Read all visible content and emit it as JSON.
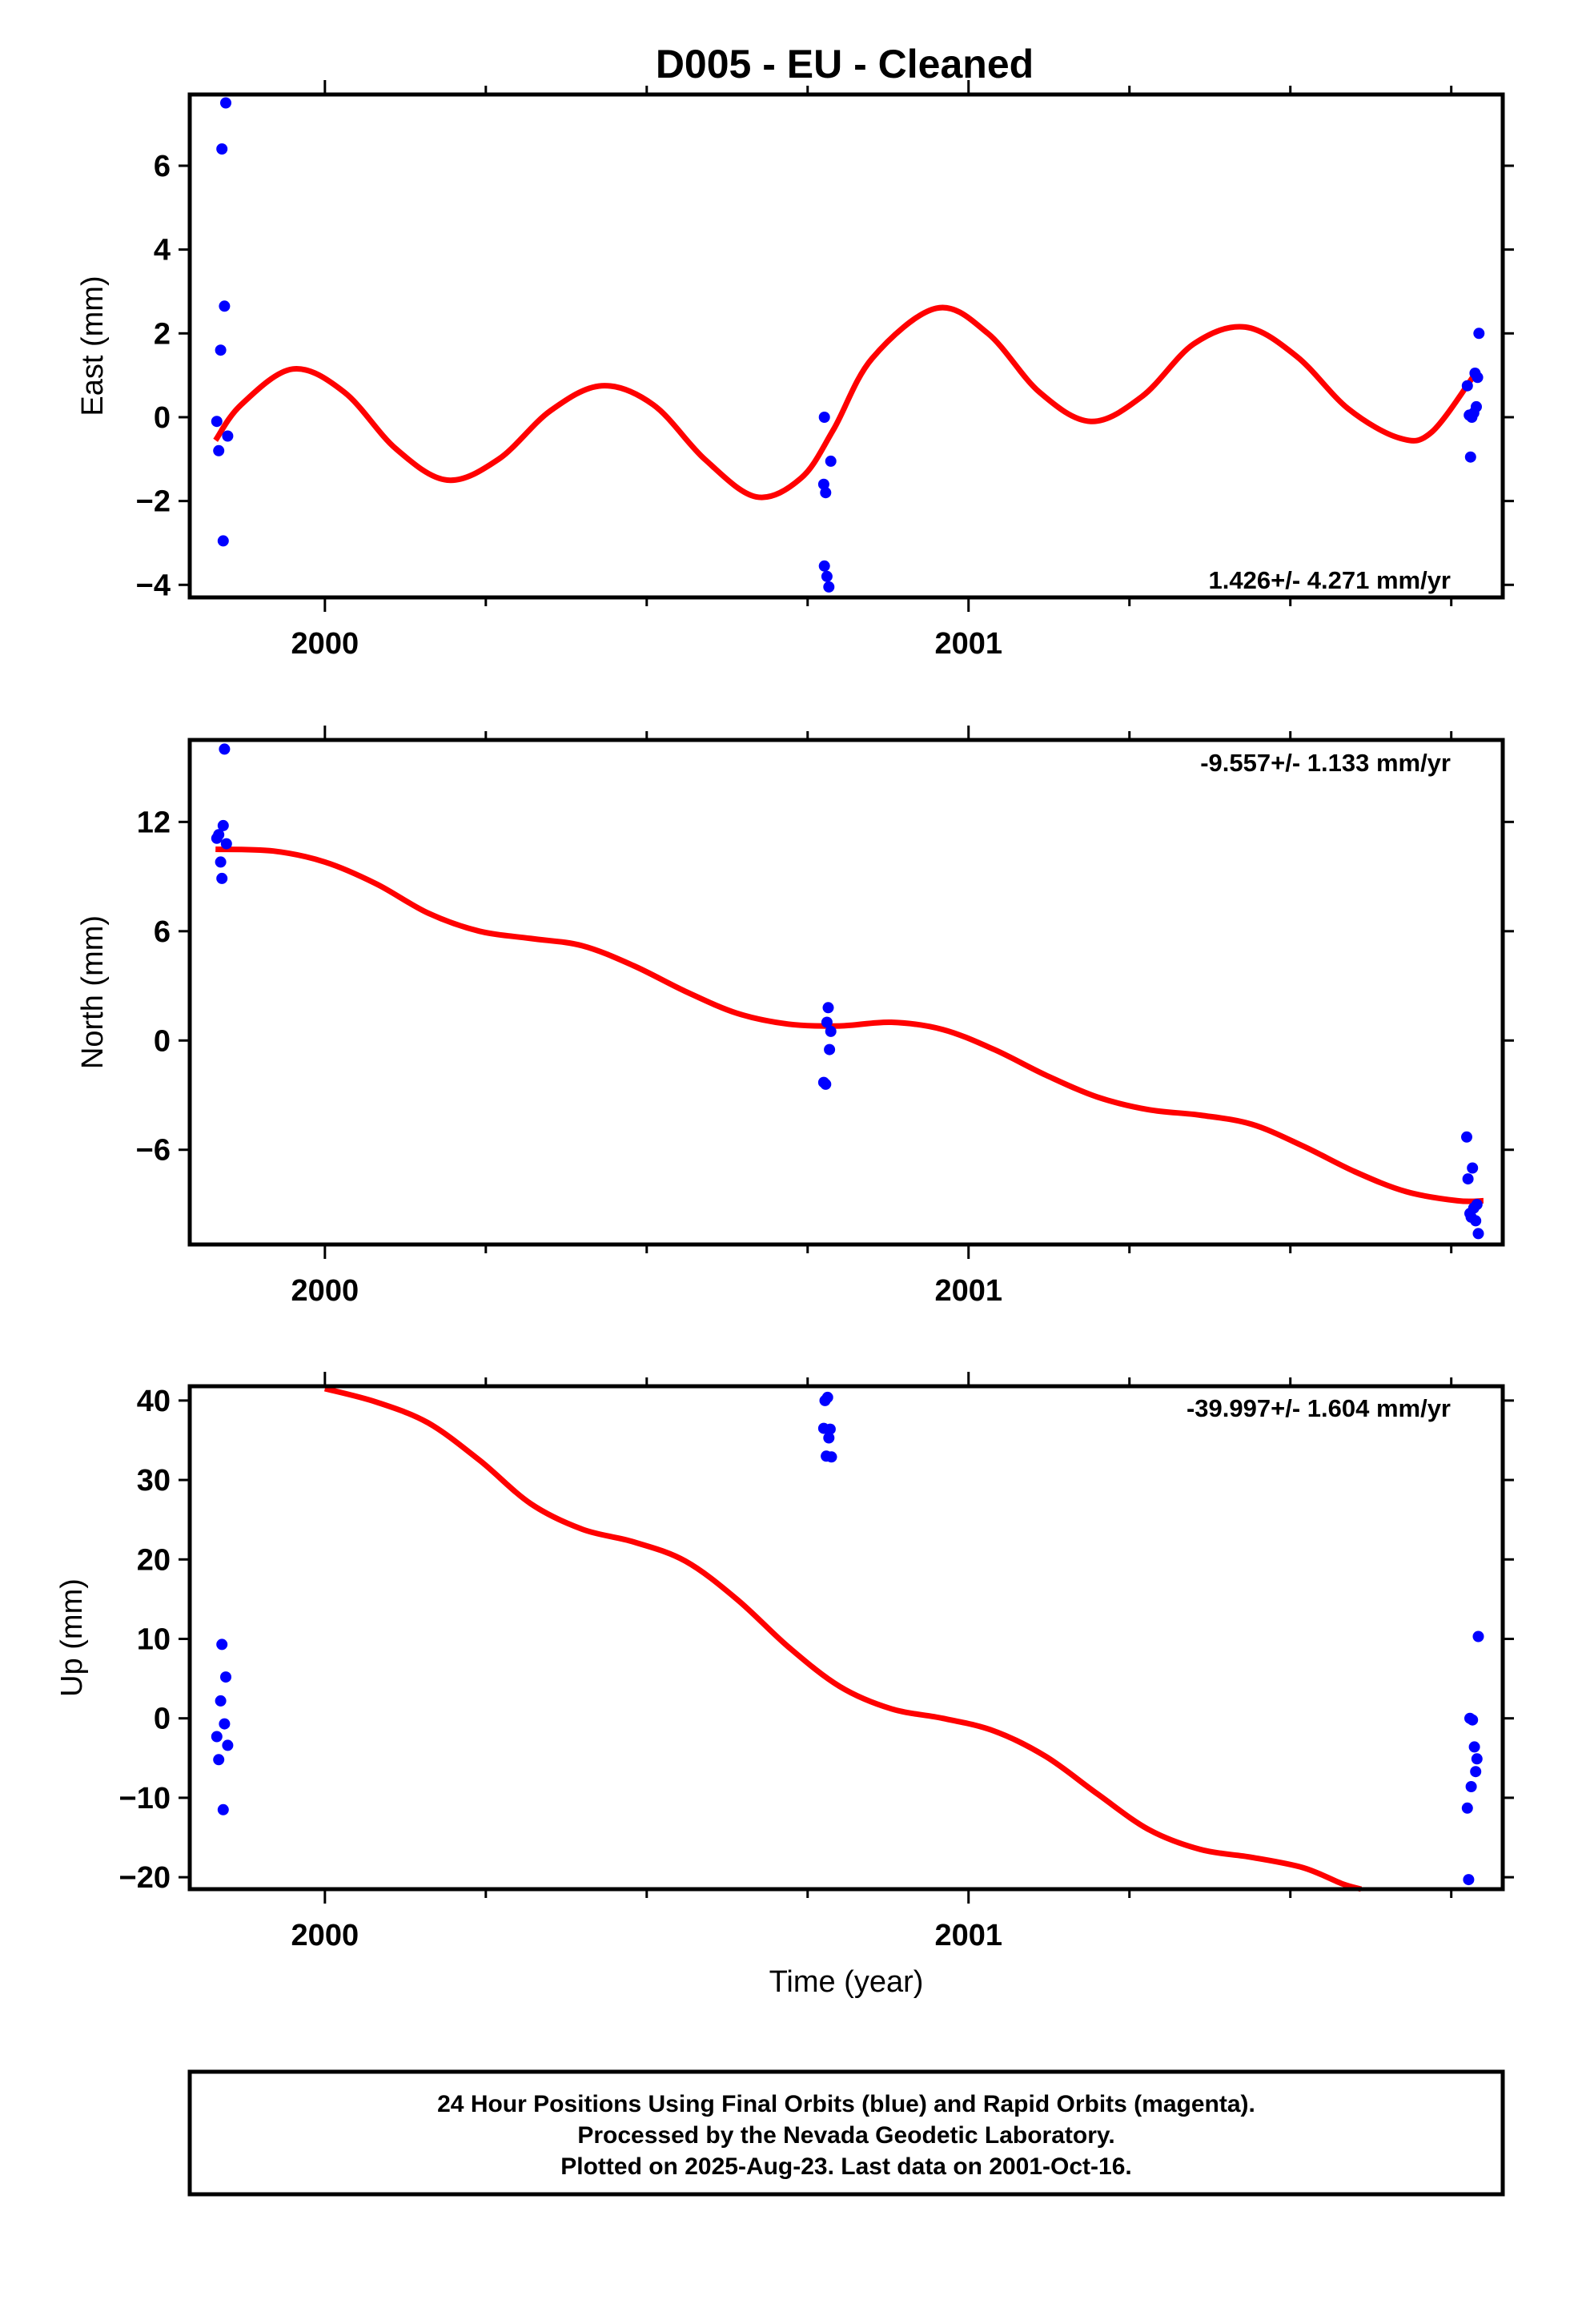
{
  "title": "D005  - EU - Cleaned",
  "chart_data": [
    {
      "type": "scatter",
      "panel": "east",
      "ylabel": "East (mm)",
      "xlabel": "",
      "xlim": [
        1999.79,
        2001.83
      ],
      "ylim": [
        -4.3,
        7.7
      ],
      "yticks": [
        -4,
        -2,
        0,
        2,
        4,
        6
      ],
      "xticks": [
        2000,
        2001
      ],
      "rate_text": "1.426+/- 4.271 mm/yr",
      "rate_position": "bottom-right",
      "series": [
        {
          "color": "#0000ff",
          "points": [
            [
              1999.832,
              -0.1
            ],
            [
              1999.835,
              -0.8
            ],
            [
              1999.838,
              1.6
            ],
            [
              1999.84,
              6.4
            ],
            [
              1999.842,
              -2.95
            ],
            [
              1999.844,
              2.65
            ],
            [
              1999.846,
              7.5
            ],
            [
              1999.849,
              -0.45
            ],
            [
              2000.776,
              0.0
            ],
            [
              2000.775,
              -1.6
            ],
            [
              2000.778,
              -1.8
            ],
            [
              2000.776,
              -3.55
            ],
            [
              2000.78,
              -3.8
            ],
            [
              2000.783,
              -4.05
            ],
            [
              2000.786,
              -1.05
            ],
            [
              2001.775,
              0.75
            ],
            [
              2001.778,
              0.05
            ],
            [
              2001.78,
              -0.95
            ],
            [
              2001.782,
              0.0
            ],
            [
              2001.785,
              0.1
            ],
            [
              2001.787,
              1.05
            ],
            [
              2001.789,
              0.25
            ],
            [
              2001.791,
              0.95
            ],
            [
              2001.793,
              2.0
            ]
          ]
        },
        {
          "color": "#ff0000",
          "line": [
            [
              1999.83,
              -0.55
            ],
            [
              1999.87,
              0.3
            ],
            [
              1999.95,
              1.15
            ],
            [
              2000.03,
              0.6
            ],
            [
              2000.11,
              -0.75
            ],
            [
              2000.19,
              -1.5
            ],
            [
              2000.27,
              -1.0
            ],
            [
              2000.35,
              0.15
            ],
            [
              2000.43,
              0.75
            ],
            [
              2000.51,
              0.3
            ],
            [
              2000.59,
              -1.0
            ],
            [
              2000.67,
              -1.9
            ],
            [
              2000.74,
              -1.45
            ],
            [
              2000.79,
              -0.3
            ],
            [
              2000.85,
              1.4
            ],
            [
              2000.95,
              2.6
            ],
            [
              2001.03,
              2.0
            ],
            [
              2001.11,
              0.6
            ],
            [
              2001.19,
              -0.1
            ],
            [
              2001.27,
              0.5
            ],
            [
              2001.35,
              1.75
            ],
            [
              2001.43,
              2.15
            ],
            [
              2001.51,
              1.45
            ],
            [
              2001.59,
              0.2
            ],
            [
              2001.67,
              -0.5
            ],
            [
              2001.72,
              -0.35
            ],
            [
              2001.79,
              1.1
            ]
          ]
        }
      ]
    },
    {
      "type": "scatter",
      "panel": "north",
      "ylabel": "North (mm)",
      "xlabel": "",
      "xlim": [
        1999.79,
        2001.83
      ],
      "ylim": [
        -11.2,
        16.5
      ],
      "yticks": [
        -6,
        0,
        6,
        12
      ],
      "xticks": [
        2000,
        2001
      ],
      "rate_text": "-9.557+/- 1.133 mm/yr",
      "rate_position": "top-right",
      "series": [
        {
          "color": "#0000ff",
          "points": [
            [
              1999.832,
              11.1
            ],
            [
              1999.835,
              11.3
            ],
            [
              1999.838,
              9.8
            ],
            [
              1999.84,
              8.9
            ],
            [
              1999.842,
              11.8
            ],
            [
              1999.844,
              16.0
            ],
            [
              1999.847,
              10.8
            ],
            [
              2000.775,
              -2.3
            ],
            [
              2000.778,
              -2.4
            ],
            [
              2000.78,
              1.0
            ],
            [
              2000.782,
              1.8
            ],
            [
              2000.784,
              -0.5
            ],
            [
              2000.786,
              0.5
            ],
            [
              2001.774,
              -5.3
            ],
            [
              2001.776,
              -7.6
            ],
            [
              2001.779,
              -9.5
            ],
            [
              2001.781,
              -9.7
            ],
            [
              2001.783,
              -7.0
            ],
            [
              2001.785,
              -9.2
            ],
            [
              2001.788,
              -9.9
            ],
            [
              2001.79,
              -9.0
            ],
            [
              2001.792,
              -10.6
            ]
          ]
        },
        {
          "color": "#ff0000",
          "line": [
            [
              1999.83,
              10.5
            ],
            [
              1999.92,
              10.4
            ],
            [
              2000.0,
              9.8
            ],
            [
              2000.08,
              8.6
            ],
            [
              2000.16,
              7.0
            ],
            [
              2000.24,
              6.0
            ],
            [
              2000.32,
              5.6
            ],
            [
              2000.4,
              5.2
            ],
            [
              2000.48,
              4.1
            ],
            [
              2000.56,
              2.7
            ],
            [
              2000.64,
              1.5
            ],
            [
              2000.72,
              0.9
            ],
            [
              2000.8,
              0.8
            ],
            [
              2000.88,
              1.0
            ],
            [
              2000.96,
              0.6
            ],
            [
              2001.04,
              -0.5
            ],
            [
              2001.12,
              -1.9
            ],
            [
              2001.2,
              -3.1
            ],
            [
              2001.28,
              -3.8
            ],
            [
              2001.36,
              -4.1
            ],
            [
              2001.44,
              -4.6
            ],
            [
              2001.52,
              -5.8
            ],
            [
              2001.6,
              -7.2
            ],
            [
              2001.68,
              -8.3
            ],
            [
              2001.76,
              -8.8
            ],
            [
              2001.8,
              -8.8
            ]
          ]
        }
      ]
    },
    {
      "type": "scatter",
      "panel": "up",
      "ylabel": "Up (mm)",
      "xlabel": "Time (year)",
      "xlim": [
        1999.79,
        2001.83
      ],
      "ylim": [
        -21.5,
        41.8
      ],
      "yticks": [
        -20,
        -10,
        0,
        10,
        20,
        30,
        40
      ],
      "xticks": [
        2000,
        2001
      ],
      "rate_text": "-39.997+/- 1.604 mm/yr",
      "rate_position": "top-right",
      "series": [
        {
          "color": "#0000ff",
          "points": [
            [
              1999.832,
              -2.3
            ],
            [
              1999.835,
              -5.2
            ],
            [
              1999.838,
              2.2
            ],
            [
              1999.84,
              9.3
            ],
            [
              1999.842,
              -11.5
            ],
            [
              1999.844,
              -0.7
            ],
            [
              1999.846,
              5.2
            ],
            [
              1999.849,
              -3.4
            ],
            [
              2000.775,
              36.5
            ],
            [
              2000.777,
              40.0
            ],
            [
              2000.779,
              33.0
            ],
            [
              2000.781,
              40.4
            ],
            [
              2000.783,
              35.3
            ],
            [
              2000.785,
              36.4
            ],
            [
              2000.787,
              32.9
            ],
            [
              2001.775,
              -11.3
            ],
            [
              2001.777,
              -20.3
            ],
            [
              2001.779,
              0.0
            ],
            [
              2001.781,
              -8.6
            ],
            [
              2001.783,
              -0.2
            ],
            [
              2001.786,
              -3.6
            ],
            [
              2001.788,
              -6.7
            ],
            [
              2001.79,
              -5.1
            ],
            [
              2001.792,
              10.3
            ]
          ]
        },
        {
          "color": "#ff0000",
          "line": [
            [
              2000.0,
              41.5
            ],
            [
              2000.08,
              39.8
            ],
            [
              2000.16,
              37.2
            ],
            [
              2000.24,
              32.5
            ],
            [
              2000.32,
              27.0
            ],
            [
              2000.4,
              23.8
            ],
            [
              2000.48,
              22.2
            ],
            [
              2000.56,
              19.8
            ],
            [
              2000.64,
              15.0
            ],
            [
              2000.72,
              9.0
            ],
            [
              2000.8,
              4.0
            ],
            [
              2000.88,
              1.2
            ],
            [
              2000.96,
              0.0
            ],
            [
              2001.04,
              -1.6
            ],
            [
              2001.12,
              -4.8
            ],
            [
              2001.2,
              -9.5
            ],
            [
              2001.28,
              -14.0
            ],
            [
              2001.36,
              -16.5
            ],
            [
              2001.44,
              -17.5
            ],
            [
              2001.52,
              -18.8
            ],
            [
              2001.58,
              -20.8
            ],
            [
              2001.61,
              -21.5
            ]
          ]
        }
      ]
    }
  ],
  "footer": {
    "line1": "24 Hour Positions Using Final Orbits (blue) and Rapid Orbits (magenta).",
    "line2": "Processed by the Nevada Geodetic Laboratory.",
    "line3": "Plotted on 2025-Aug-23. Last data on 2001-Oct-16."
  }
}
